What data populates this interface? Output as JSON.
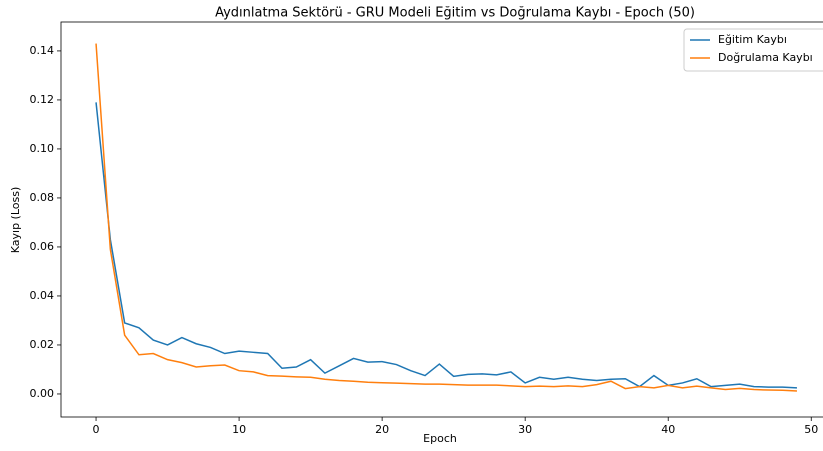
{
  "chart_data": {
    "type": "line",
    "title": "Aydınlatma Sektörü - GRU Modeli Eğitim vs Doğrulama Kaybı - Epoch (50)",
    "xlabel": "Epoch",
    "ylabel": "Kayıp (Loss)",
    "x": [
      0,
      1,
      2,
      3,
      4,
      5,
      6,
      7,
      8,
      9,
      10,
      11,
      12,
      13,
      14,
      15,
      16,
      17,
      18,
      19,
      20,
      21,
      22,
      23,
      24,
      25,
      26,
      27,
      28,
      29,
      30,
      31,
      32,
      33,
      34,
      35,
      36,
      37,
      38,
      39,
      40,
      41,
      42,
      43,
      44,
      45,
      46,
      47,
      48,
      49
    ],
    "series": [
      {
        "name": "Eğitim Kaybı",
        "color": "#1f77b4",
        "values": [
          0.119,
          0.063,
          0.029,
          0.027,
          0.022,
          0.02,
          0.023,
          0.0205,
          0.019,
          0.0165,
          0.0175,
          0.017,
          0.0165,
          0.0105,
          0.011,
          0.014,
          0.0085,
          0.0115,
          0.0145,
          0.013,
          0.0132,
          0.012,
          0.0095,
          0.0075,
          0.0122,
          0.0072,
          0.008,
          0.0082,
          0.0078,
          0.009,
          0.0045,
          0.0068,
          0.006,
          0.0068,
          0.006,
          0.0055,
          0.006,
          0.0062,
          0.003,
          0.0075,
          0.0035,
          0.0045,
          0.0062,
          0.003,
          0.0035,
          0.004,
          0.003,
          0.0028,
          0.0028,
          0.0025
        ]
      },
      {
        "name": "Doğrulama Kaybı",
        "color": "#ff7f0e",
        "values": [
          0.143,
          0.059,
          0.024,
          0.016,
          0.0165,
          0.014,
          0.0128,
          0.011,
          0.0115,
          0.0118,
          0.0095,
          0.009,
          0.0075,
          0.0073,
          0.007,
          0.0068,
          0.006,
          0.0055,
          0.0052,
          0.0048,
          0.0046,
          0.0044,
          0.0042,
          0.004,
          0.004,
          0.0038,
          0.0036,
          0.0036,
          0.0036,
          0.0033,
          0.003,
          0.0032,
          0.003,
          0.0033,
          0.003,
          0.0038,
          0.0052,
          0.0022,
          0.003,
          0.0025,
          0.0035,
          0.0025,
          0.0032,
          0.0025,
          0.0018,
          0.0023,
          0.0018,
          0.0016,
          0.0015,
          0.0012
        ]
      }
    ],
    "xlim": [
      -2.45,
      51.45
    ],
    "xticks": [
      0,
      10,
      20,
      30,
      40,
      50
    ],
    "ylim": [
      -0.0094,
      0.1518
    ],
    "yticks": [
      {
        "value": 0,
        "label": "0.00"
      },
      0.02,
      0.04,
      0.06,
      0.08,
      {
        "value": 0.1,
        "label": "0.10"
      },
      0.12,
      0.14
    ],
    "legend": "upper right",
    "grid": false
  }
}
